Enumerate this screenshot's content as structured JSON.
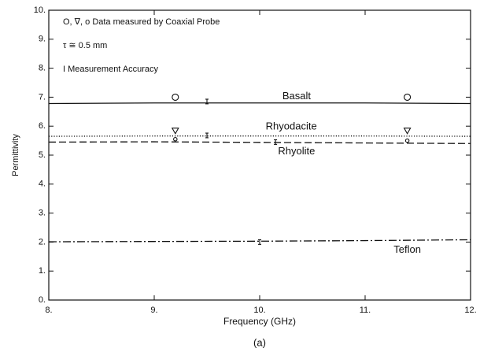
{
  "chart_data": {
    "type": "line",
    "xlabel": "Frequency (GHz)",
    "ylabel": "Permittivity",
    "caption": "(a)",
    "annotations": [
      "O, ∇, o   Data measured by Coaxial Probe",
      "τ ≅ 0.5 mm",
      "I   Measurement Accuracy"
    ],
    "xlim": [
      8,
      12
    ],
    "ylim": [
      0,
      10
    ],
    "xticks": [
      {
        "value": 8,
        "label": "8."
      },
      {
        "value": 9,
        "label": "9."
      },
      {
        "value": 10,
        "label": "10."
      },
      {
        "value": 11,
        "label": "11."
      },
      {
        "value": 12,
        "label": "12."
      }
    ],
    "yticks": [
      {
        "value": 0,
        "label": "0."
      },
      {
        "value": 1,
        "label": "1."
      },
      {
        "value": 2,
        "label": "2."
      },
      {
        "value": 3,
        "label": "3."
      },
      {
        "value": 4,
        "label": "4."
      },
      {
        "value": 5,
        "label": "5."
      },
      {
        "value": 6,
        "label": "6."
      },
      {
        "value": 7,
        "label": "7."
      },
      {
        "value": 8,
        "label": "8."
      },
      {
        "value": 9,
        "label": "9."
      },
      {
        "value": 10,
        "label": "10."
      }
    ],
    "x": [
      8,
      9,
      10,
      11,
      12
    ],
    "series": [
      {
        "name": "Basalt",
        "color": "#111111",
        "linestyle": "solid",
        "values": [
          6.78,
          6.8,
          6.8,
          6.8,
          6.78
        ]
      },
      {
        "name": "Rhyodacite",
        "color": "#111111",
        "linestyle": "dotted",
        "values": [
          5.65,
          5.66,
          5.66,
          5.66,
          5.65
        ]
      },
      {
        "name": "Rhyolite",
        "color": "#111111",
        "linestyle": "dashed",
        "values": [
          5.45,
          5.46,
          5.44,
          5.42,
          5.4
        ]
      },
      {
        "name": "Teflon",
        "color": "#111111",
        "linestyle": "dashdot",
        "values": [
          2.01,
          2.02,
          2.03,
          2.05,
          2.08
        ]
      }
    ],
    "points": [
      {
        "marker": "circle",
        "x": [
          9.2,
          11.4
        ],
        "values": [
          7.0,
          7.0
        ]
      },
      {
        "marker": "triangle",
        "x": [
          9.2,
          11.4
        ],
        "values": [
          5.85,
          5.85
        ]
      },
      {
        "marker": "dot",
        "x": [
          9.2,
          11.4
        ],
        "values": [
          5.55,
          5.5
        ]
      }
    ],
    "error_bars": {
      "x": [
        9.5,
        9.5,
        10.15,
        10
      ],
      "values": [
        6.85,
        5.68,
        5.45,
        2.0
      ],
      "errors": [
        0.08,
        0.08,
        0.08,
        0.08
      ]
    }
  }
}
